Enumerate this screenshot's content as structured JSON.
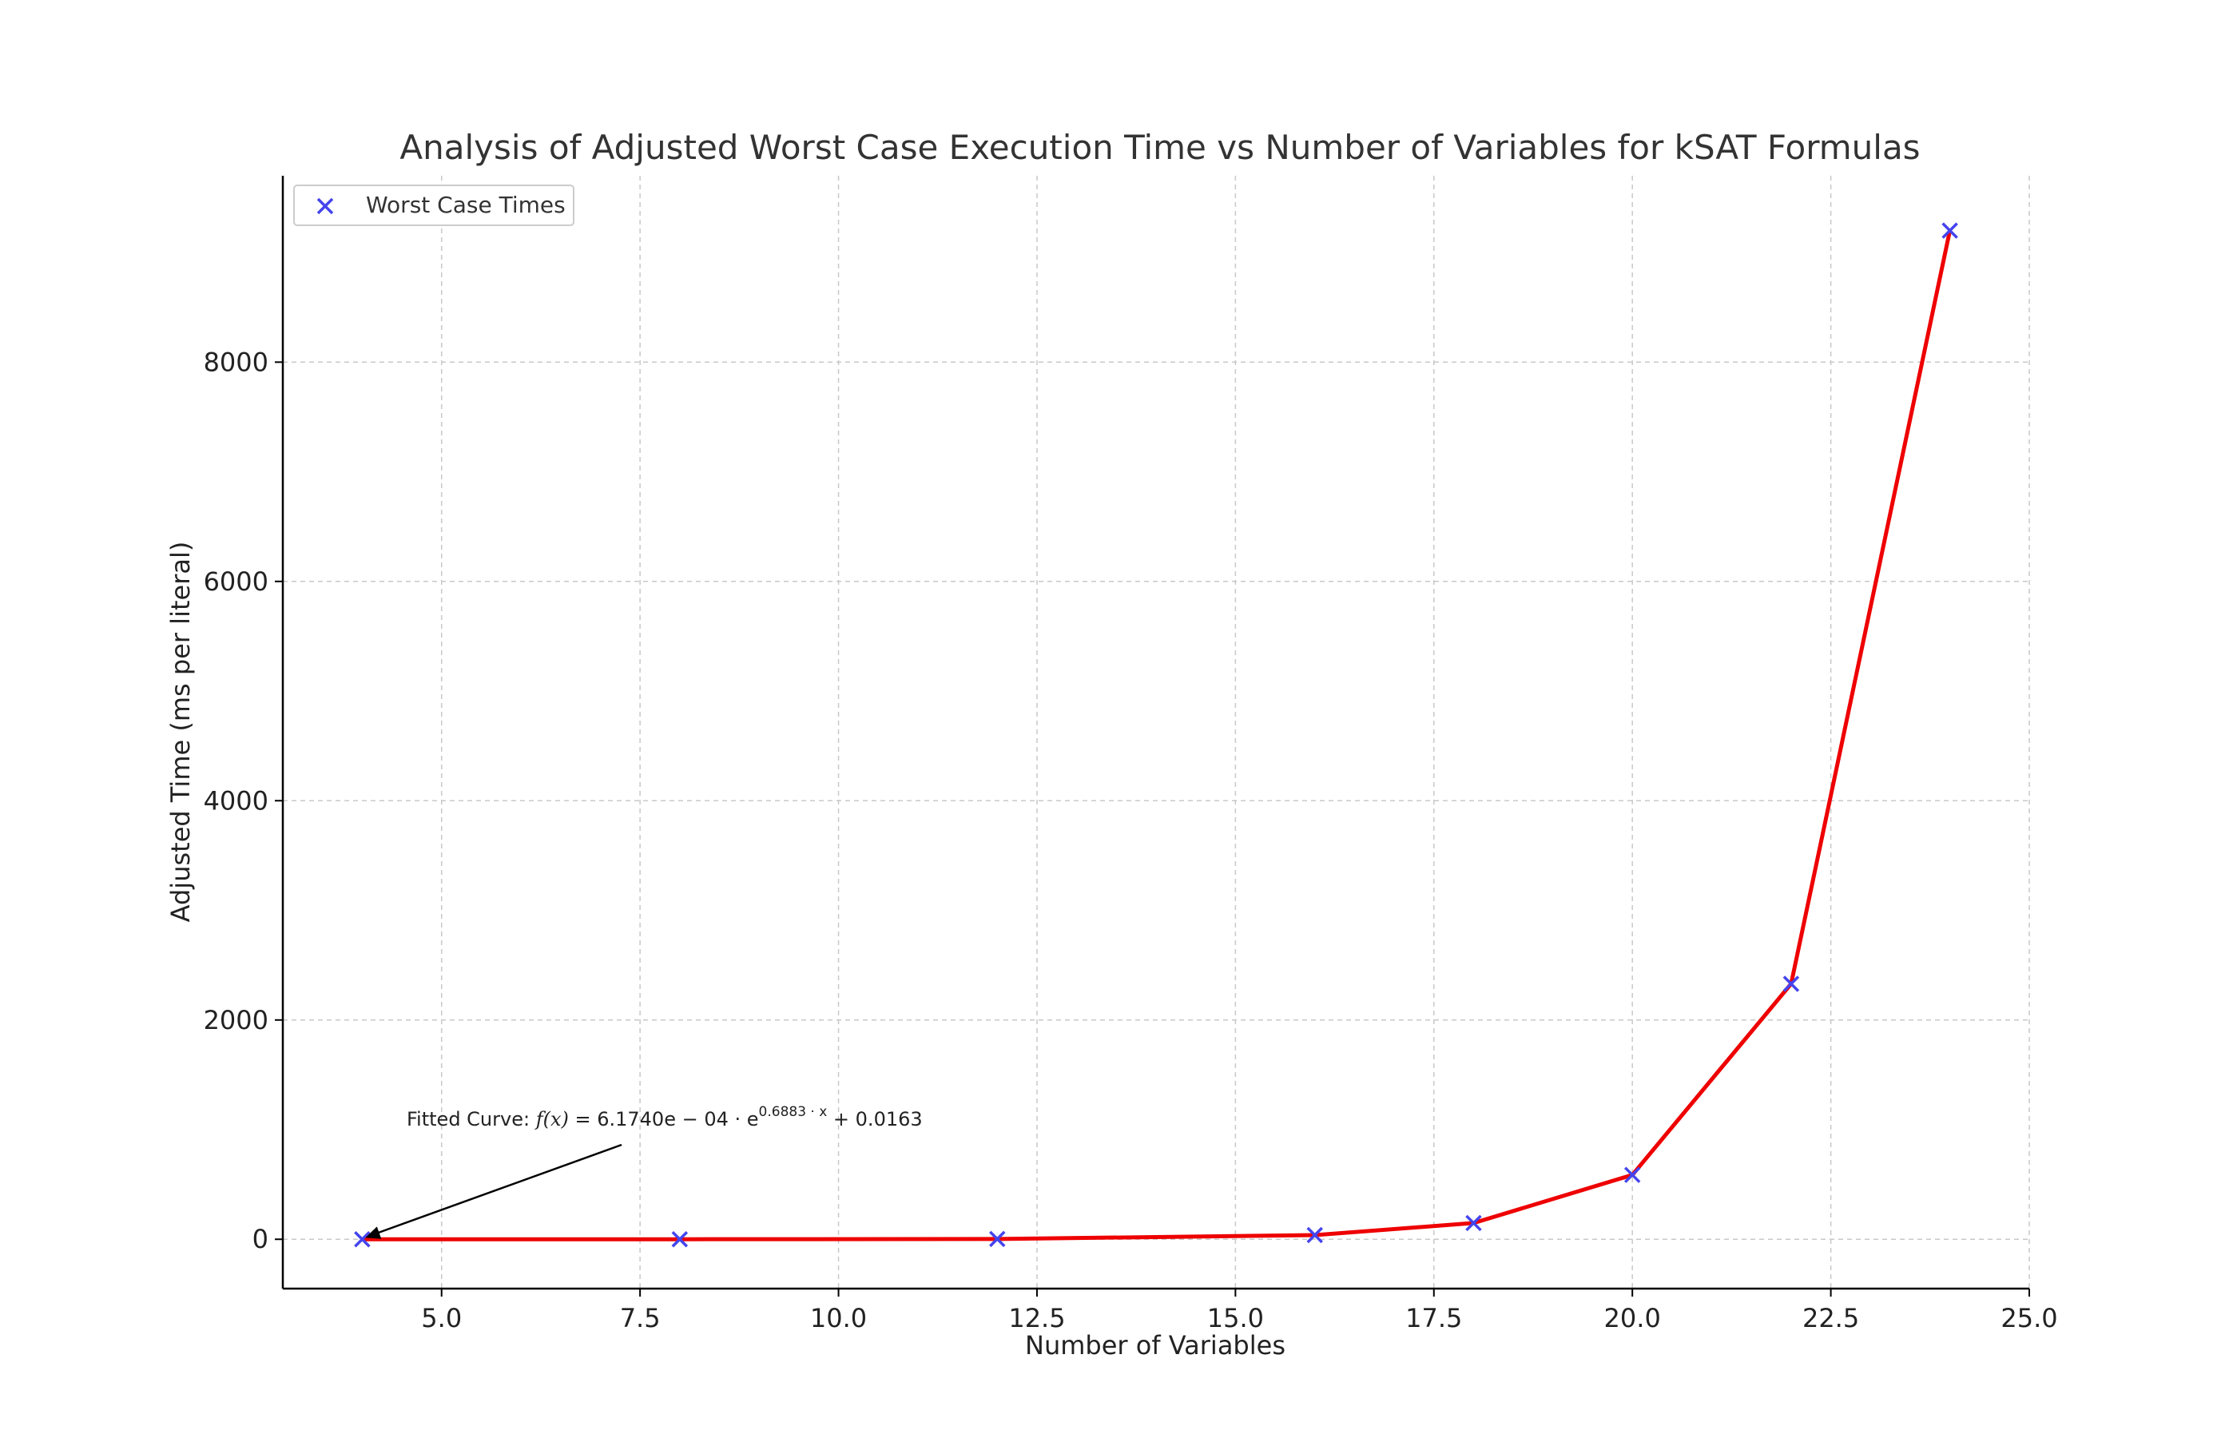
{
  "chart_data": {
    "type": "line",
    "title": "Analysis of Adjusted Worst Case Execution Time vs Number of Variables for kSAT Formulas",
    "xlabel": "Number of Variables",
    "ylabel": "Adjusted Time (ms per literal)",
    "xlim": [
      3.0,
      25.0
    ],
    "ylim": [
      -450,
      9700
    ],
    "x_ticks": [
      5.0,
      7.5,
      10.0,
      12.5,
      15.0,
      17.5,
      20.0,
      22.5,
      25.0
    ],
    "x_tick_labels": [
      "5.0",
      "7.5",
      "10.0",
      "12.5",
      "15.0",
      "17.5",
      "20.0",
      "22.5",
      "25.0"
    ],
    "y_ticks": [
      0,
      2000,
      4000,
      6000,
      8000
    ],
    "y_tick_labels": [
      "0",
      "2000",
      "4000",
      "6000",
      "8000"
    ],
    "grid": true,
    "legend_position": "top-left",
    "series": [
      {
        "name": "Worst Case Times",
        "kind": "scatter",
        "marker": "x",
        "color": "#4444ee",
        "x": [
          4,
          8,
          12,
          16,
          18,
          20,
          22,
          24
        ],
        "y": [
          0.03,
          0.15,
          2.4,
          38,
          148,
          587,
          2330,
          9200
        ]
      },
      {
        "kind": "line",
        "color": "#ee0000",
        "x": [
          4,
          8,
          12,
          16,
          18,
          20,
          22,
          24
        ],
        "y": [
          0.03,
          0.15,
          2.4,
          38,
          148,
          587,
          2330,
          9200
        ]
      }
    ],
    "annotation": {
      "prefix": "Fitted Curve: ",
      "formula_lhs": "f(x)",
      "formula_rhs_main": " = 6.1740e − 04 · e",
      "formula_exponent": "0.6883 · x",
      "formula_tail": " + 0.0163",
      "arrow_target": {
        "x": 4,
        "y": 0
      }
    }
  }
}
